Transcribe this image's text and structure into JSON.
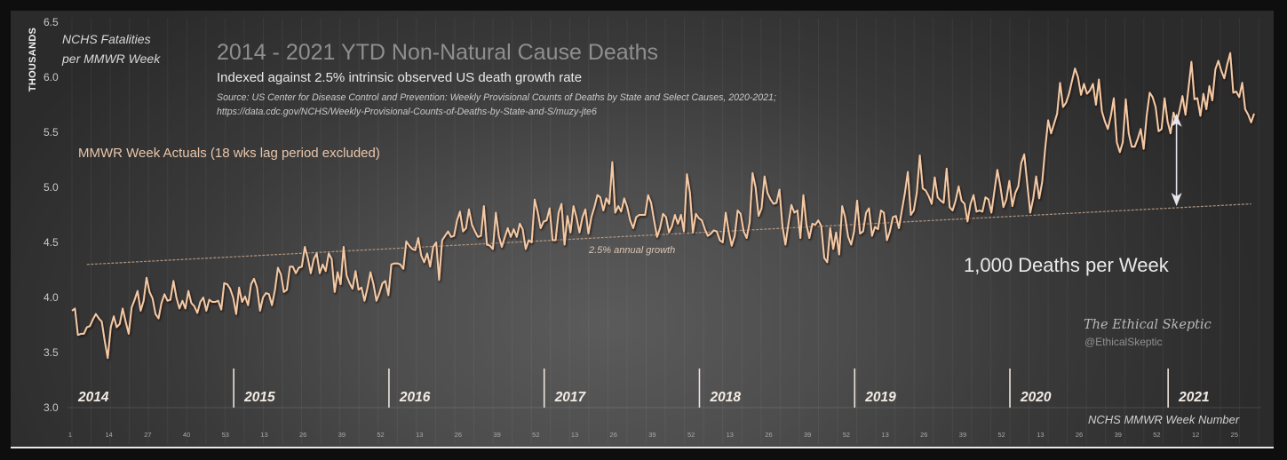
{
  "chart_data": {
    "type": "line",
    "title": "2014 - 2021 YTD Non-Natural Cause Deaths",
    "subtitle": "Indexed against 2.5% intrinsic observed US death growth rate",
    "source": [
      "Source: US Center for Disease Control and Prevention: Weekly Provisional Counts of Deaths by State and Select Causes, 2020-2021;",
      "https://data.cdc.gov/NCHS/Weekly-Provisional-Counts-of-Deaths-by-State-and-S/muzy-jte6"
    ],
    "ylabel": "THOUSANDS",
    "ylabel_note": [
      "NCHS Fatalities",
      "per MMWR Week"
    ],
    "xlabel": "NCHS MMWR Week Number",
    "ylim": [
      3.0,
      6.5
    ],
    "yticks": [
      "3.0",
      "3.5",
      "4.0",
      "4.5",
      "5.0",
      "5.5",
      "6.0",
      "6.5"
    ],
    "x_tick_every_weeks": 13,
    "x_tick_labels": [
      "1",
      "14",
      "27",
      "40",
      "53",
      "13",
      "26",
      "39",
      "52",
      "13",
      "26",
      "39",
      "52",
      "13",
      "26",
      "39",
      "52",
      "13",
      "26",
      "39",
      "52",
      "13",
      "26",
      "39",
      "52",
      "13",
      "26",
      "39",
      "52",
      "12",
      "25"
    ],
    "grid": {
      "vertical": true,
      "horizontal": false
    },
    "legend": "top-left",
    "series": [
      {
        "name": "MMWR Week Actuals (18 wks lag period excluded)",
        "color": "#f3c9a6",
        "years": [
          {
            "year": "2014",
            "values": [
              3.88,
              3.9,
              3.66,
              3.67,
              3.67,
              3.73,
              3.74,
              3.8,
              3.85,
              3.81,
              3.78,
              3.6,
              3.45,
              3.73,
              3.83,
              3.73,
              3.76,
              3.9,
              3.78,
              3.67,
              3.91,
              3.98,
              4.06,
              3.88,
              3.97,
              4.18,
              4.05,
              3.99,
              3.85,
              3.81,
              3.95,
              4.03,
              3.97,
              3.98,
              4.15,
              4.0,
              3.9,
              3.97,
              3.9,
              4.06,
              3.95,
              3.92,
              3.86,
              3.96,
              4.0,
              3.88,
              3.98,
              3.96,
              3.96,
              3.97,
              3.89,
              4.13,
              4.12
            ]
          },
          {
            "year": "2015",
            "values": [
              4.08,
              4.0,
              3.85,
              4.09,
              3.96,
              4.01,
              3.93,
              4.12,
              4.17,
              4.09,
              3.88,
              4.0,
              4.04,
              4.03,
              3.93,
              4.07,
              4.27,
              4.21,
              4.05,
              4.07,
              4.28,
              4.28,
              4.22,
              4.27,
              4.28,
              4.46,
              4.36,
              4.22,
              4.35,
              4.4,
              4.22,
              4.3,
              4.24,
              4.4,
              4.35,
              4.05,
              4.23,
              4.12,
              4.46,
              4.2,
              4.13,
              4.08,
              4.24,
              4.07,
              4.09,
              3.97,
              4.09,
              4.23,
              4.12,
              3.97,
              4.04,
              4.13
            ]
          },
          {
            "year": "2016",
            "values": [
              4.15,
              4.02,
              4.3,
              4.31,
              4.31,
              4.3,
              4.26,
              4.51,
              4.47,
              4.44,
              4.43,
              4.54,
              4.38,
              4.32,
              4.4,
              4.28,
              4.46,
              4.5,
              4.16,
              4.52,
              4.56,
              4.6,
              4.55,
              4.56,
              4.7,
              4.78,
              4.6,
              4.63,
              4.8,
              4.66,
              4.6,
              4.55,
              4.56,
              4.83,
              4.48,
              4.47,
              4.44,
              4.77,
              4.56,
              4.46,
              4.55,
              4.63,
              4.55,
              4.62,
              4.55,
              4.67,
              4.62,
              4.44,
              4.52,
              4.5,
              4.89,
              4.78
            ]
          },
          {
            "year": "2017",
            "values": [
              4.63,
              4.69,
              4.7,
              4.81,
              4.52,
              4.52,
              4.77,
              4.85,
              4.48,
              4.74,
              4.59,
              4.83,
              4.73,
              4.59,
              4.73,
              4.8,
              4.58,
              4.73,
              4.82,
              4.93,
              4.91,
              4.79,
              4.9,
              4.85,
              5.23,
              4.77,
              4.83,
              4.78,
              4.9,
              4.82,
              4.7,
              4.63,
              4.73,
              4.75,
              4.75,
              4.75,
              4.93,
              4.86,
              4.7,
              4.55,
              4.63,
              4.76,
              4.73,
              4.59,
              4.65,
              4.75,
              4.67,
              4.75,
              4.6,
              5.12,
              4.95,
              4.59
            ]
          },
          {
            "year": "2018",
            "values": [
              4.76,
              4.72,
              4.7,
              4.62,
              4.56,
              4.58,
              4.61,
              4.6,
              4.52,
              4.5,
              4.77,
              4.6,
              4.47,
              4.56,
              4.79,
              4.76,
              4.6,
              4.54,
              4.68,
              5.13,
              5.0,
              4.74,
              4.81,
              5.1,
              4.95,
              4.89,
              4.85,
              4.86,
              4.98,
              4.65,
              4.48,
              4.67,
              4.84,
              4.77,
              4.79,
              4.54,
              4.93,
              4.67,
              4.54,
              4.67,
              4.66,
              4.7,
              4.65,
              4.36,
              4.32,
              4.63,
              4.44,
              4.59,
              4.39,
              4.83,
              4.73,
              4.55
            ]
          },
          {
            "year": "2019",
            "values": [
              4.48,
              4.6,
              4.88,
              4.58,
              4.6,
              4.77,
              4.81,
              4.56,
              4.64,
              4.62,
              4.79,
              4.77,
              4.52,
              4.6,
              4.73,
              4.74,
              4.63,
              4.79,
              4.95,
              5.14,
              4.75,
              4.79,
              4.95,
              5.29,
              4.99,
              4.97,
              4.92,
              4.85,
              5.09,
              4.91,
              4.88,
              4.86,
              5.17,
              4.82,
              4.79,
              4.88,
              5.01,
              4.88,
              4.85,
              4.69,
              4.85,
              4.93,
              4.78,
              4.79,
              4.78,
              4.91,
              4.89,
              4.77,
              4.97,
              5.16,
              5.01,
              4.82
            ]
          },
          {
            "year": "2020",
            "values": [
              4.89,
              5.06,
              4.83,
              4.95,
              5.01,
              5.22,
              5.3,
              5.03,
              4.77,
              4.9,
              5.1,
              4.9,
              5.05,
              5.35,
              5.61,
              5.49,
              5.58,
              5.67,
              5.95,
              5.73,
              5.77,
              5.85,
              5.97,
              6.08,
              6.0,
              5.84,
              5.94,
              5.85,
              5.88,
              5.94,
              5.75,
              5.98,
              5.69,
              5.6,
              5.53,
              5.65,
              5.81,
              5.41,
              5.32,
              5.41,
              5.8,
              5.49,
              5.37,
              5.37,
              5.44,
              5.53,
              5.35,
              5.65,
              5.86,
              5.82,
              5.73,
              5.51,
              5.53
            ]
          },
          {
            "year": "2021",
            "values": [
              5.81,
              5.6,
              5.49,
              5.68,
              5.59,
              5.7,
              5.83,
              5.66,
              5.9,
              6.14,
              5.8,
              5.81,
              5.65,
              5.85,
              5.71,
              5.92,
              5.79,
              6.07,
              6.15,
              6.06,
              5.99,
              6.12,
              6.22,
              5.86,
              5.87,
              5.82,
              5.95,
              5.71,
              5.66,
              5.59,
              5.67
            ]
          }
        ]
      }
    ],
    "trend": {
      "label": "2.5% annual growth",
      "color": "#c4a48c",
      "start": {
        "year": "2014",
        "week": 6,
        "value": 4.3
      },
      "end": {
        "year": "2021",
        "week": 30,
        "value": 4.85
      }
    },
    "annotation": {
      "label": "1,000 Deaths per Week",
      "color": "#e6e6ee",
      "year": "2021",
      "week": 5,
      "from": 4.83,
      "to": 5.67
    },
    "watermark": {
      "name": "The Ethical Skeptic",
      "handle": "@EthicalSkeptic"
    }
  }
}
